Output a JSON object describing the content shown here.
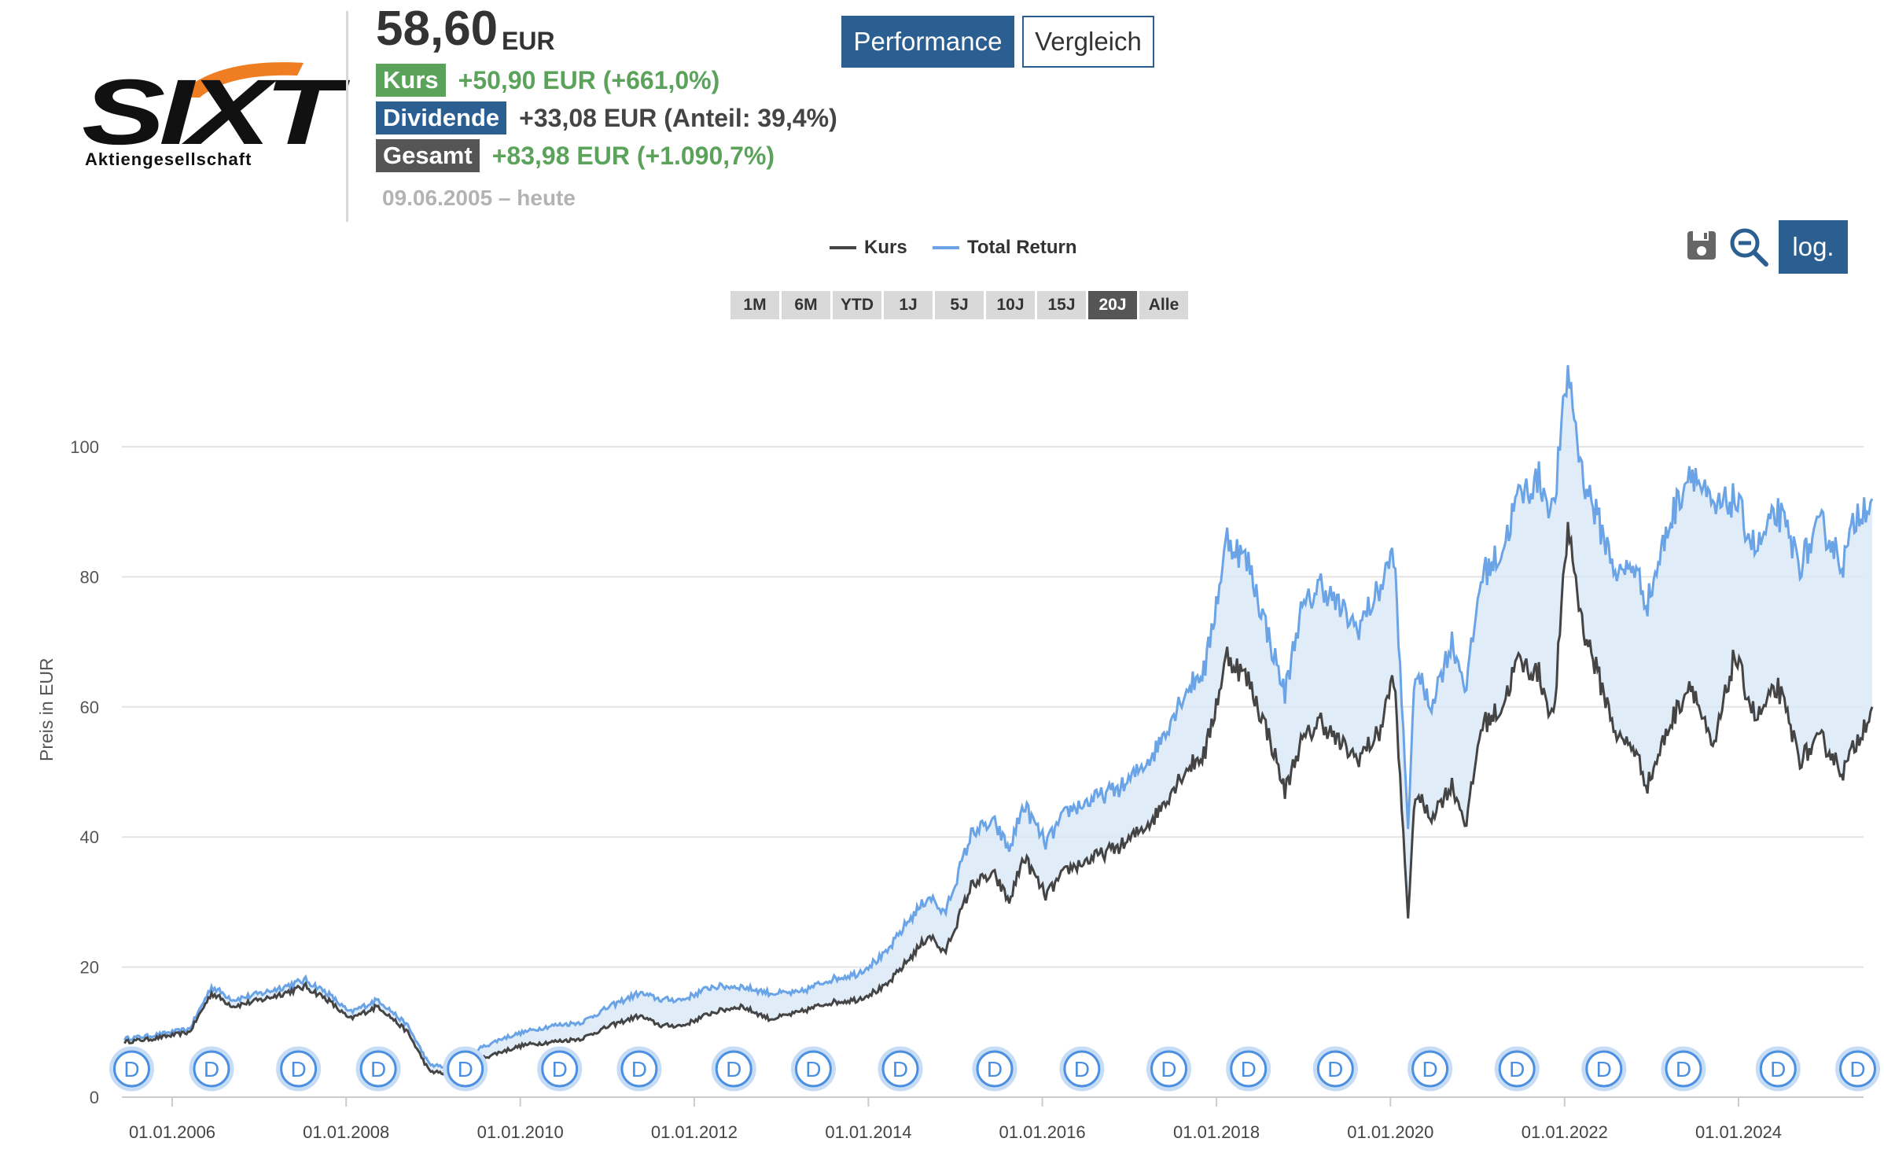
{
  "company": {
    "logo_text": "SIXT",
    "logo_subtext": "Aktiengesellschaft"
  },
  "quote": {
    "price": "58,60",
    "currency": "EUR"
  },
  "stats": [
    {
      "label": "Kurs",
      "value": "+50,90 EUR (+661,0%)",
      "badge_color": "#5ba35b",
      "value_color": "#5ba35b"
    },
    {
      "label": "Dividende",
      "value": "+33,08 EUR (Anteil: 39,4%)",
      "badge_color": "#2b5f91",
      "value_color": "#444444"
    },
    {
      "label": "Gesamt",
      "value": "+83,98 EUR (+1.090,7%)",
      "badge_color": "#555555",
      "value_color": "#5ba35b"
    }
  ],
  "date_range": "09.06.2005 – heute",
  "buttons": {
    "performance": "Performance",
    "compare": "Vergleich",
    "log": "log."
  },
  "tools": {
    "save_icon": "save-icon",
    "zoom_out_icon": "zoom-out-icon"
  },
  "ranges": [
    {
      "label": "1M",
      "active": false
    },
    {
      "label": "6M",
      "active": false
    },
    {
      "label": "YTD",
      "active": false
    },
    {
      "label": "1J",
      "active": false
    },
    {
      "label": "5J",
      "active": false
    },
    {
      "label": "10J",
      "active": false
    },
    {
      "label": "15J",
      "active": false
    },
    {
      "label": "20J",
      "active": true
    },
    {
      "label": "Alle",
      "active": false
    }
  ],
  "colors": {
    "accent": "#2b5f91",
    "kurs_line": "#444444",
    "total_return_line": "#6aa4e6",
    "fill": "#d9e7f7",
    "dividend_marker": "#4a8fe0",
    "positive": "#5ba35b"
  },
  "chart_data": {
    "type": "line",
    "ylabel": "Preis in EUR",
    "ylim": [
      0,
      115
    ],
    "yticks": [
      0,
      20,
      40,
      60,
      80,
      100
    ],
    "xlim": [
      "2005-06-09",
      "2025-08-01"
    ],
    "xticks": [
      "01.01.2006",
      "01.01.2008",
      "01.01.2010",
      "01.01.2012",
      "01.01.2014",
      "01.01.2016",
      "01.01.2018",
      "01.01.2020",
      "01.01.2022",
      "01.01.2024"
    ],
    "legend": [
      "Kurs",
      "Total Return"
    ],
    "legend_position": "top-center",
    "grid": true,
    "series": [
      {
        "name": "Kurs",
        "x": [
          "2005-06",
          "2005-10",
          "2006-03",
          "2006-06",
          "2006-09",
          "2007-01",
          "2007-04",
          "2007-07",
          "2007-10",
          "2008-01",
          "2008-05",
          "2008-09",
          "2008-12",
          "2009-03",
          "2009-06",
          "2009-10",
          "2010-01",
          "2010-05",
          "2010-09",
          "2011-01",
          "2011-05",
          "2011-08",
          "2011-11",
          "2012-03",
          "2012-07",
          "2012-11",
          "2013-03",
          "2013-07",
          "2013-11",
          "2014-03",
          "2014-06",
          "2014-09",
          "2014-11",
          "2015-03",
          "2015-06",
          "2015-08",
          "2015-10",
          "2016-01",
          "2016-04",
          "2016-08",
          "2016-12",
          "2017-04",
          "2017-08",
          "2017-11",
          "2018-02",
          "2018-05",
          "2018-08",
          "2018-10",
          "2018-12",
          "2019-03",
          "2019-05",
          "2019-08",
          "2019-11",
          "2020-01",
          "2020-03",
          "2020-04",
          "2020-06",
          "2020-09",
          "2020-11",
          "2021-01",
          "2021-04",
          "2021-06",
          "2021-09",
          "2021-11",
          "2022-01",
          "2022-03",
          "2022-06",
          "2022-08",
          "2022-10",
          "2022-12",
          "2023-03",
          "2023-06",
          "2023-09",
          "2023-12",
          "2024-03",
          "2024-06",
          "2024-09",
          "2024-12",
          "2025-03",
          "2025-05",
          "2025-07"
        ],
        "y": [
          8.5,
          9,
          10,
          16,
          14,
          15,
          16,
          17,
          15,
          12,
          14,
          10,
          4,
          3.5,
          5.5,
          7,
          8,
          8.5,
          9,
          11,
          12.5,
          11,
          11,
          13,
          14,
          12,
          13,
          14.5,
          15,
          17,
          21,
          25,
          22,
          33,
          34,
          30,
          37,
          31,
          35,
          37,
          39,
          43,
          50,
          53,
          68,
          64,
          55,
          47,
          54,
          58,
          55,
          52,
          56,
          65,
          28,
          47,
          43,
          48,
          42,
          57,
          60,
          67,
          65,
          58,
          88,
          73,
          62,
          55,
          54,
          48,
          57,
          64,
          53,
          68,
          58,
          63,
          52,
          55,
          50,
          55,
          60
        ]
      },
      {
        "name": "Total Return",
        "x": [
          "2005-06",
          "2005-10",
          "2006-03",
          "2006-06",
          "2006-09",
          "2007-01",
          "2007-04",
          "2007-07",
          "2007-10",
          "2008-01",
          "2008-05",
          "2008-09",
          "2008-12",
          "2009-03",
          "2009-06",
          "2009-10",
          "2010-01",
          "2010-05",
          "2010-09",
          "2011-01",
          "2011-05",
          "2011-08",
          "2011-11",
          "2012-03",
          "2012-07",
          "2012-11",
          "2013-03",
          "2013-07",
          "2013-11",
          "2014-03",
          "2014-06",
          "2014-09",
          "2014-11",
          "2015-03",
          "2015-06",
          "2015-08",
          "2015-10",
          "2016-01",
          "2016-04",
          "2016-08",
          "2016-12",
          "2017-04",
          "2017-08",
          "2017-11",
          "2018-02",
          "2018-05",
          "2018-08",
          "2018-10",
          "2018-12",
          "2019-03",
          "2019-05",
          "2019-08",
          "2019-11",
          "2020-01",
          "2020-03",
          "2020-04",
          "2020-06",
          "2020-09",
          "2020-11",
          "2021-01",
          "2021-04",
          "2021-06",
          "2021-09",
          "2021-11",
          "2022-01",
          "2022-03",
          "2022-06",
          "2022-08",
          "2022-10",
          "2022-12",
          "2023-03",
          "2023-06",
          "2023-09",
          "2023-12",
          "2024-03",
          "2024-06",
          "2024-09",
          "2024-12",
          "2025-03",
          "2025-05",
          "2025-07"
        ],
        "y": [
          9,
          9.5,
          10.5,
          17,
          15,
          16,
          17,
          18,
          16,
          13,
          15,
          11,
          5,
          4.5,
          7,
          9,
          10,
          11,
          11.5,
          14,
          16,
          15,
          15,
          17,
          17,
          16,
          16,
          18,
          19,
          22,
          27,
          31,
          28,
          41,
          42,
          38,
          45,
          39,
          44,
          46,
          48,
          53,
          62,
          66,
          86,
          82,
          70,
          62,
          74,
          79,
          76,
          72,
          78,
          84,
          42,
          66,
          60,
          70,
          63,
          80,
          84,
          92,
          95,
          90,
          112,
          96,
          86,
          80,
          82,
          76,
          88,
          97,
          90,
          92,
          84,
          90,
          82,
          88,
          82,
          90,
          92
        ]
      }
    ],
    "dividend_marker_label": "D",
    "dividend_dates": [
      "2005-07",
      "2006-06",
      "2007-06",
      "2008-05",
      "2009-05",
      "2010-06",
      "2011-05",
      "2012-06",
      "2013-05",
      "2014-05",
      "2015-06",
      "2016-06",
      "2017-06",
      "2018-05",
      "2019-05",
      "2020-06",
      "2021-06",
      "2022-06",
      "2023-05",
      "2024-06",
      "2025-05"
    ]
  }
}
